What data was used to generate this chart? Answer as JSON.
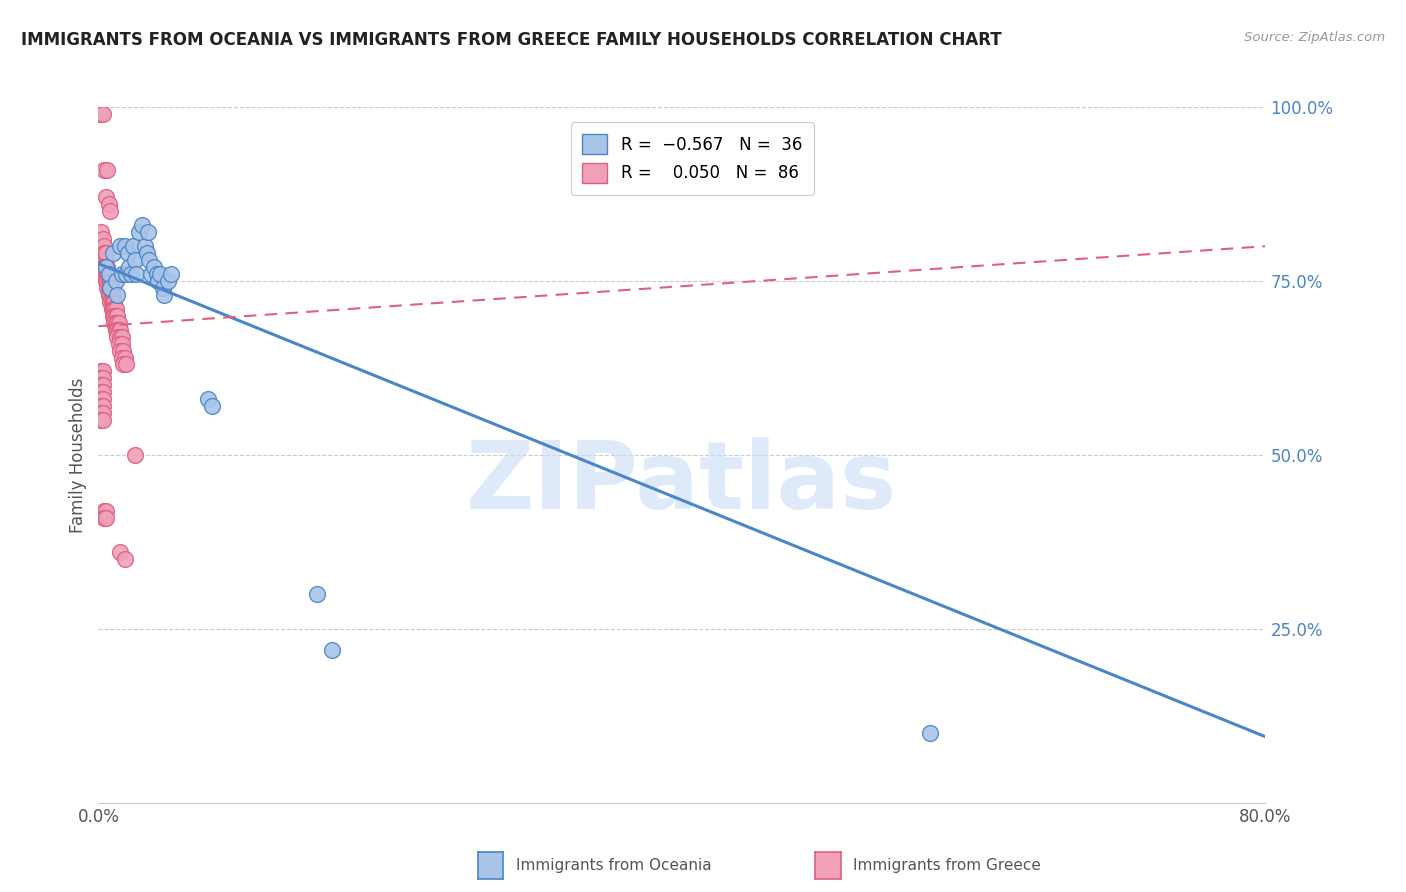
{
  "title": "IMMIGRANTS FROM OCEANIA VS IMMIGRANTS FROM GREECE FAMILY HOUSEHOLDS CORRELATION CHART",
  "source": "Source: ZipAtlas.com",
  "ylabel": "Family Households",
  "right_yticks": [
    0.0,
    0.25,
    0.5,
    0.75,
    1.0
  ],
  "right_yticklabels": [
    "",
    "25.0%",
    "50.0%",
    "75.0%",
    "100.0%"
  ],
  "xticks": [
    0.0,
    0.1,
    0.2,
    0.3,
    0.4,
    0.5,
    0.6,
    0.7,
    0.8
  ],
  "xticklabels": [
    "0.0%",
    "",
    "",
    "",
    "",
    "",
    "",
    "",
    "80.0%"
  ],
  "xlim": [
    0.0,
    0.8
  ],
  "ylim": [
    0.0,
    1.0
  ],
  "oceania_points": [
    [
      0.005,
      0.77
    ],
    [
      0.007,
      0.76
    ],
    [
      0.008,
      0.74
    ],
    [
      0.01,
      0.79
    ],
    [
      0.012,
      0.75
    ],
    [
      0.013,
      0.73
    ],
    [
      0.015,
      0.8
    ],
    [
      0.016,
      0.76
    ],
    [
      0.018,
      0.8
    ],
    [
      0.019,
      0.76
    ],
    [
      0.02,
      0.79
    ],
    [
      0.021,
      0.77
    ],
    [
      0.022,
      0.76
    ],
    [
      0.024,
      0.8
    ],
    [
      0.025,
      0.78
    ],
    [
      0.026,
      0.76
    ],
    [
      0.028,
      0.82
    ],
    [
      0.03,
      0.83
    ],
    [
      0.032,
      0.8
    ],
    [
      0.033,
      0.79
    ],
    [
      0.034,
      0.82
    ],
    [
      0.035,
      0.78
    ],
    [
      0.036,
      0.76
    ],
    [
      0.038,
      0.77
    ],
    [
      0.04,
      0.76
    ],
    [
      0.041,
      0.75
    ],
    [
      0.042,
      0.76
    ],
    [
      0.044,
      0.74
    ],
    [
      0.045,
      0.73
    ],
    [
      0.048,
      0.75
    ],
    [
      0.05,
      0.76
    ],
    [
      0.075,
      0.58
    ],
    [
      0.078,
      0.57
    ],
    [
      0.15,
      0.3
    ],
    [
      0.16,
      0.22
    ],
    [
      0.57,
      0.1
    ]
  ],
  "greece_points": [
    [
      0.001,
      0.99
    ],
    [
      0.003,
      0.99
    ],
    [
      0.004,
      0.91
    ],
    [
      0.006,
      0.91
    ],
    [
      0.005,
      0.87
    ],
    [
      0.007,
      0.86
    ],
    [
      0.008,
      0.85
    ],
    [
      0.002,
      0.82
    ],
    [
      0.003,
      0.81
    ],
    [
      0.004,
      0.8
    ],
    [
      0.003,
      0.78
    ],
    [
      0.004,
      0.79
    ],
    [
      0.005,
      0.79
    ],
    [
      0.003,
      0.77
    ],
    [
      0.004,
      0.77
    ],
    [
      0.005,
      0.77
    ],
    [
      0.006,
      0.77
    ],
    [
      0.004,
      0.76
    ],
    [
      0.005,
      0.76
    ],
    [
      0.006,
      0.76
    ],
    [
      0.007,
      0.76
    ],
    [
      0.005,
      0.75
    ],
    [
      0.006,
      0.75
    ],
    [
      0.007,
      0.75
    ],
    [
      0.008,
      0.75
    ],
    [
      0.006,
      0.74
    ],
    [
      0.007,
      0.74
    ],
    [
      0.008,
      0.74
    ],
    [
      0.009,
      0.74
    ],
    [
      0.007,
      0.73
    ],
    [
      0.008,
      0.73
    ],
    [
      0.009,
      0.73
    ],
    [
      0.01,
      0.73
    ],
    [
      0.008,
      0.72
    ],
    [
      0.009,
      0.72
    ],
    [
      0.01,
      0.72
    ],
    [
      0.011,
      0.72
    ],
    [
      0.009,
      0.71
    ],
    [
      0.01,
      0.71
    ],
    [
      0.011,
      0.71
    ],
    [
      0.012,
      0.71
    ],
    [
      0.01,
      0.7
    ],
    [
      0.011,
      0.7
    ],
    [
      0.012,
      0.7
    ],
    [
      0.013,
      0.7
    ],
    [
      0.011,
      0.69
    ],
    [
      0.012,
      0.69
    ],
    [
      0.013,
      0.69
    ],
    [
      0.014,
      0.69
    ],
    [
      0.012,
      0.68
    ],
    [
      0.013,
      0.68
    ],
    [
      0.014,
      0.68
    ],
    [
      0.015,
      0.68
    ],
    [
      0.013,
      0.67
    ],
    [
      0.015,
      0.67
    ],
    [
      0.016,
      0.67
    ],
    [
      0.014,
      0.66
    ],
    [
      0.016,
      0.66
    ],
    [
      0.015,
      0.65
    ],
    [
      0.017,
      0.65
    ],
    [
      0.016,
      0.64
    ],
    [
      0.018,
      0.64
    ],
    [
      0.017,
      0.63
    ],
    [
      0.019,
      0.63
    ],
    [
      0.002,
      0.62
    ],
    [
      0.003,
      0.62
    ],
    [
      0.002,
      0.61
    ],
    [
      0.003,
      0.61
    ],
    [
      0.002,
      0.6
    ],
    [
      0.003,
      0.6
    ],
    [
      0.002,
      0.59
    ],
    [
      0.003,
      0.59
    ],
    [
      0.002,
      0.58
    ],
    [
      0.003,
      0.58
    ],
    [
      0.002,
      0.57
    ],
    [
      0.003,
      0.57
    ],
    [
      0.002,
      0.56
    ],
    [
      0.003,
      0.56
    ],
    [
      0.002,
      0.55
    ],
    [
      0.003,
      0.55
    ],
    [
      0.025,
      0.5
    ],
    [
      0.004,
      0.42
    ],
    [
      0.005,
      0.42
    ],
    [
      0.004,
      0.41
    ],
    [
      0.005,
      0.41
    ],
    [
      0.015,
      0.36
    ],
    [
      0.018,
      0.35
    ]
  ],
  "blue_line": {
    "x0": 0.0,
    "y0": 0.775,
    "x1": 0.8,
    "y1": 0.095
  },
  "pink_line": {
    "x0": 0.0,
    "y0": 0.685,
    "x1": 0.8,
    "y1": 0.8
  },
  "blue_color": "#4a86c8",
  "pink_color": "#e06080",
  "blue_marker_fill": "#aac4e8",
  "pink_marker_fill": "#f0a0b8",
  "watermark": "ZIPatlas",
  "watermark_color": "#c8ddf5",
  "background_color": "#ffffff",
  "grid_color": "#cccccc",
  "title_color": "#222222",
  "axis_label_color": "#555555",
  "right_tick_color": "#4a86c8"
}
